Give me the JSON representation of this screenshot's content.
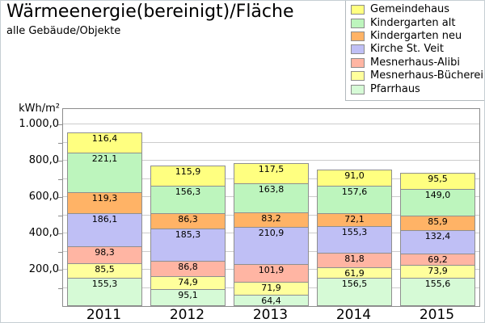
{
  "header": {
    "title": "Wärmeenergie(bereinigt)/Fläche",
    "subtitle": "alle Gebäude/Objekte"
  },
  "legend": {
    "position": "top-right",
    "items": [
      {
        "label": "Gemeindehaus",
        "color": "#FFFF80"
      },
      {
        "label": "Kindergarten alt",
        "color": "#BDF5BD"
      },
      {
        "label": "Kindergarten neu",
        "color": "#FFB366"
      },
      {
        "label": "Kirche St. Veit",
        "color": "#BFBFF5"
      },
      {
        "label": "Mesnerhaus-Alibi",
        "color": "#FFB5A3"
      },
      {
        "label": "Mesnerhaus-Bücherei",
        "color": "#FFFF9C"
      },
      {
        "label": "Pfarrhaus",
        "color": "#D6FAD6"
      }
    ]
  },
  "y_axis": {
    "unit_label": "kWh/m²",
    "ticks": [
      {
        "value": 200,
        "label": "200,0"
      },
      {
        "value": 400,
        "label": "400,0"
      },
      {
        "value": 600,
        "label": "600,0"
      },
      {
        "value": 800,
        "label": "800,0"
      },
      {
        "value": 1000,
        "label": "1.000,0"
      }
    ],
    "minor_grid_step": 100
  },
  "chart_data": {
    "type": "bar",
    "stacked": true,
    "title": "Wärmeenergie(bereinigt)/Fläche",
    "subtitle": "alle Gebäude/Objekte",
    "xlabel": "",
    "ylabel": "kWh/m²",
    "categories": [
      "2011",
      "2012",
      "2013",
      "2014",
      "2015"
    ],
    "ylim": [
      0,
      1090
    ],
    "grid": "horizontal minor lines every 100, labeled ticks every 200",
    "legend_position": "top-right",
    "value_labels": "each segment labeled, decimal comma, one decimal",
    "stack_order": "bottom to top as listed",
    "series": [
      {
        "name": "Pfarrhaus",
        "color": "#D6FAD6",
        "values": [
          155.3,
          95.1,
          64.4,
          156.5,
          155.6
        ]
      },
      {
        "name": "Mesnerhaus-Bücherei",
        "color": "#FFFF9C",
        "values": [
          85.5,
          74.9,
          71.9,
          61.9,
          73.9
        ]
      },
      {
        "name": "Mesnerhaus-Alibi",
        "color": "#FFB5A3",
        "values": [
          98.3,
          86.8,
          101.9,
          81.8,
          69.2
        ]
      },
      {
        "name": "Kirche St. Veit",
        "color": "#BFBFF5",
        "values": [
          186.1,
          185.3,
          210.9,
          155.3,
          132.4
        ]
      },
      {
        "name": "Kindergarten neu",
        "color": "#FFB366",
        "values": [
          119.3,
          86.3,
          83.2,
          72.1,
          85.9
        ]
      },
      {
        "name": "Kindergarten alt",
        "color": "#BDF5BD",
        "values": [
          221.1,
          156.3,
          163.8,
          157.6,
          149.0
        ]
      },
      {
        "name": "Gemeindehaus",
        "color": "#FFFF80",
        "values": [
          116.4,
          115.9,
          117.5,
          91.0,
          95.5
        ]
      }
    ]
  }
}
